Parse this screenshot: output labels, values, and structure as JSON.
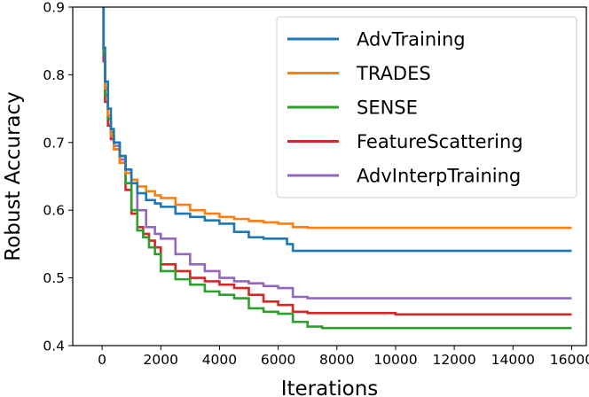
{
  "chart_data": {
    "type": "line",
    "xlabel": "Iterations",
    "ylabel": "Robust Accuracy",
    "xlim": [
      -1000,
      16500
    ],
    "ylim": [
      0.4,
      0.9
    ],
    "xticks": [
      0,
      2000,
      4000,
      6000,
      8000,
      10000,
      12000,
      14000,
      16000
    ],
    "yticks": [
      0.4,
      0.5,
      0.6,
      0.7,
      0.8,
      0.9
    ],
    "grid": false,
    "legend_position": "top-right",
    "series": [
      {
        "name": "AdvTraining",
        "color": "#1f77b4",
        "x": [
          0,
          50,
          100,
          200,
          300,
          400,
          600,
          800,
          1000,
          1200,
          1500,
          1800,
          2000,
          2500,
          3000,
          3500,
          4000,
          4500,
          5000,
          5500,
          6000,
          6300,
          6500,
          7000,
          8000,
          10000,
          12000,
          14000,
          16000
        ],
        "y": [
          0.9,
          0.84,
          0.79,
          0.75,
          0.72,
          0.7,
          0.68,
          0.66,
          0.64,
          0.625,
          0.615,
          0.61,
          0.605,
          0.595,
          0.59,
          0.585,
          0.58,
          0.568,
          0.56,
          0.558,
          0.558,
          0.55,
          0.54,
          0.54,
          0.54,
          0.54,
          0.54,
          0.54,
          0.54
        ]
      },
      {
        "name": "TRADES",
        "color": "#ff7f0e",
        "x": [
          0,
          50,
          100,
          200,
          300,
          400,
          600,
          800,
          1000,
          1200,
          1500,
          1800,
          2000,
          2500,
          3000,
          3500,
          4000,
          4500,
          5000,
          5500,
          6000,
          6500,
          7000,
          8000,
          10000,
          12000,
          14000,
          16000
        ],
        "y": [
          0.9,
          0.84,
          0.78,
          0.74,
          0.71,
          0.69,
          0.67,
          0.655,
          0.645,
          0.635,
          0.628,
          0.622,
          0.618,
          0.608,
          0.6,
          0.595,
          0.59,
          0.587,
          0.584,
          0.582,
          0.58,
          0.575,
          0.574,
          0.574,
          0.574,
          0.574,
          0.574,
          0.574
        ]
      },
      {
        "name": "SENSE",
        "color": "#2ca02c",
        "x": [
          0,
          50,
          100,
          200,
          300,
          400,
          600,
          800,
          1000,
          1200,
          1400,
          1600,
          1800,
          2000,
          2500,
          3000,
          3500,
          4000,
          4500,
          5000,
          5500,
          6000,
          6500,
          7000,
          7500,
          8000,
          10000,
          12000,
          14000,
          16000
        ],
        "y": [
          0.9,
          0.83,
          0.77,
          0.735,
          0.715,
          0.7,
          0.68,
          0.64,
          0.6,
          0.57,
          0.56,
          0.545,
          0.535,
          0.51,
          0.498,
          0.49,
          0.48,
          0.475,
          0.47,
          0.455,
          0.45,
          0.447,
          0.435,
          0.428,
          0.426,
          0.426,
          0.426,
          0.426,
          0.426,
          0.426
        ]
      },
      {
        "name": "FeatureScattering",
        "color": "#d62728",
        "x": [
          0,
          50,
          100,
          200,
          300,
          400,
          600,
          800,
          1000,
          1200,
          1400,
          1600,
          1800,
          2000,
          2500,
          3000,
          3500,
          4000,
          4500,
          5000,
          5500,
          6000,
          6500,
          7000,
          8000,
          10000,
          12000,
          14000,
          16000
        ],
        "y": [
          0.9,
          0.82,
          0.76,
          0.725,
          0.705,
          0.69,
          0.67,
          0.63,
          0.595,
          0.575,
          0.565,
          0.555,
          0.545,
          0.52,
          0.51,
          0.5,
          0.495,
          0.49,
          0.485,
          0.475,
          0.465,
          0.46,
          0.45,
          0.448,
          0.448,
          0.446,
          0.446,
          0.446,
          0.446
        ]
      },
      {
        "name": "AdvInterpTraining",
        "color": "#9467bd",
        "x": [
          0,
          50,
          100,
          200,
          300,
          400,
          600,
          800,
          1000,
          1200,
          1500,
          1800,
          2000,
          2500,
          3000,
          3500,
          4000,
          4500,
          5000,
          5500,
          6000,
          6500,
          7000,
          8000,
          10000,
          12000,
          14000,
          16000
        ],
        "y": [
          0.9,
          0.83,
          0.77,
          0.735,
          0.71,
          0.695,
          0.675,
          0.66,
          0.645,
          0.6,
          0.575,
          0.565,
          0.558,
          0.535,
          0.52,
          0.51,
          0.5,
          0.495,
          0.492,
          0.488,
          0.485,
          0.472,
          0.47,
          0.47,
          0.47,
          0.47,
          0.47,
          0.47
        ]
      }
    ]
  }
}
